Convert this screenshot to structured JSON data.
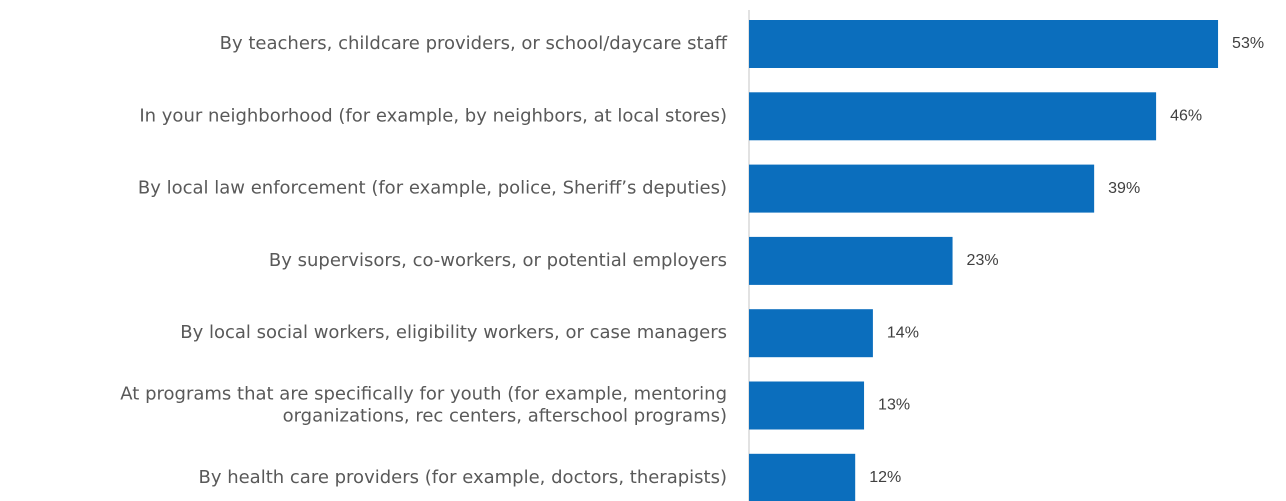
{
  "chart_data": {
    "type": "barh",
    "categories": [
      "By teachers, childcare providers, or school/daycare staff",
      "In your neighborhood (for example, by neighbors, at local stores)",
      "By local law enforcement (for example, police, Sheriff’s deputies)",
      "By supervisors, co-workers, or potential employers",
      "By local social workers, eligibility workers, or case managers",
      "At programs that are specifically for youth (for example, mentoring\norganizations, rec centers, afterschool programs)",
      "By health care providers (for example, doctors, therapists)"
    ],
    "values": [
      53,
      46,
      39,
      23,
      14,
      13,
      12
    ],
    "value_labels": [
      "53%",
      "46%",
      "39%",
      "23%",
      "14%",
      "13%",
      "12%"
    ],
    "color": "#0b6ebd"
  }
}
